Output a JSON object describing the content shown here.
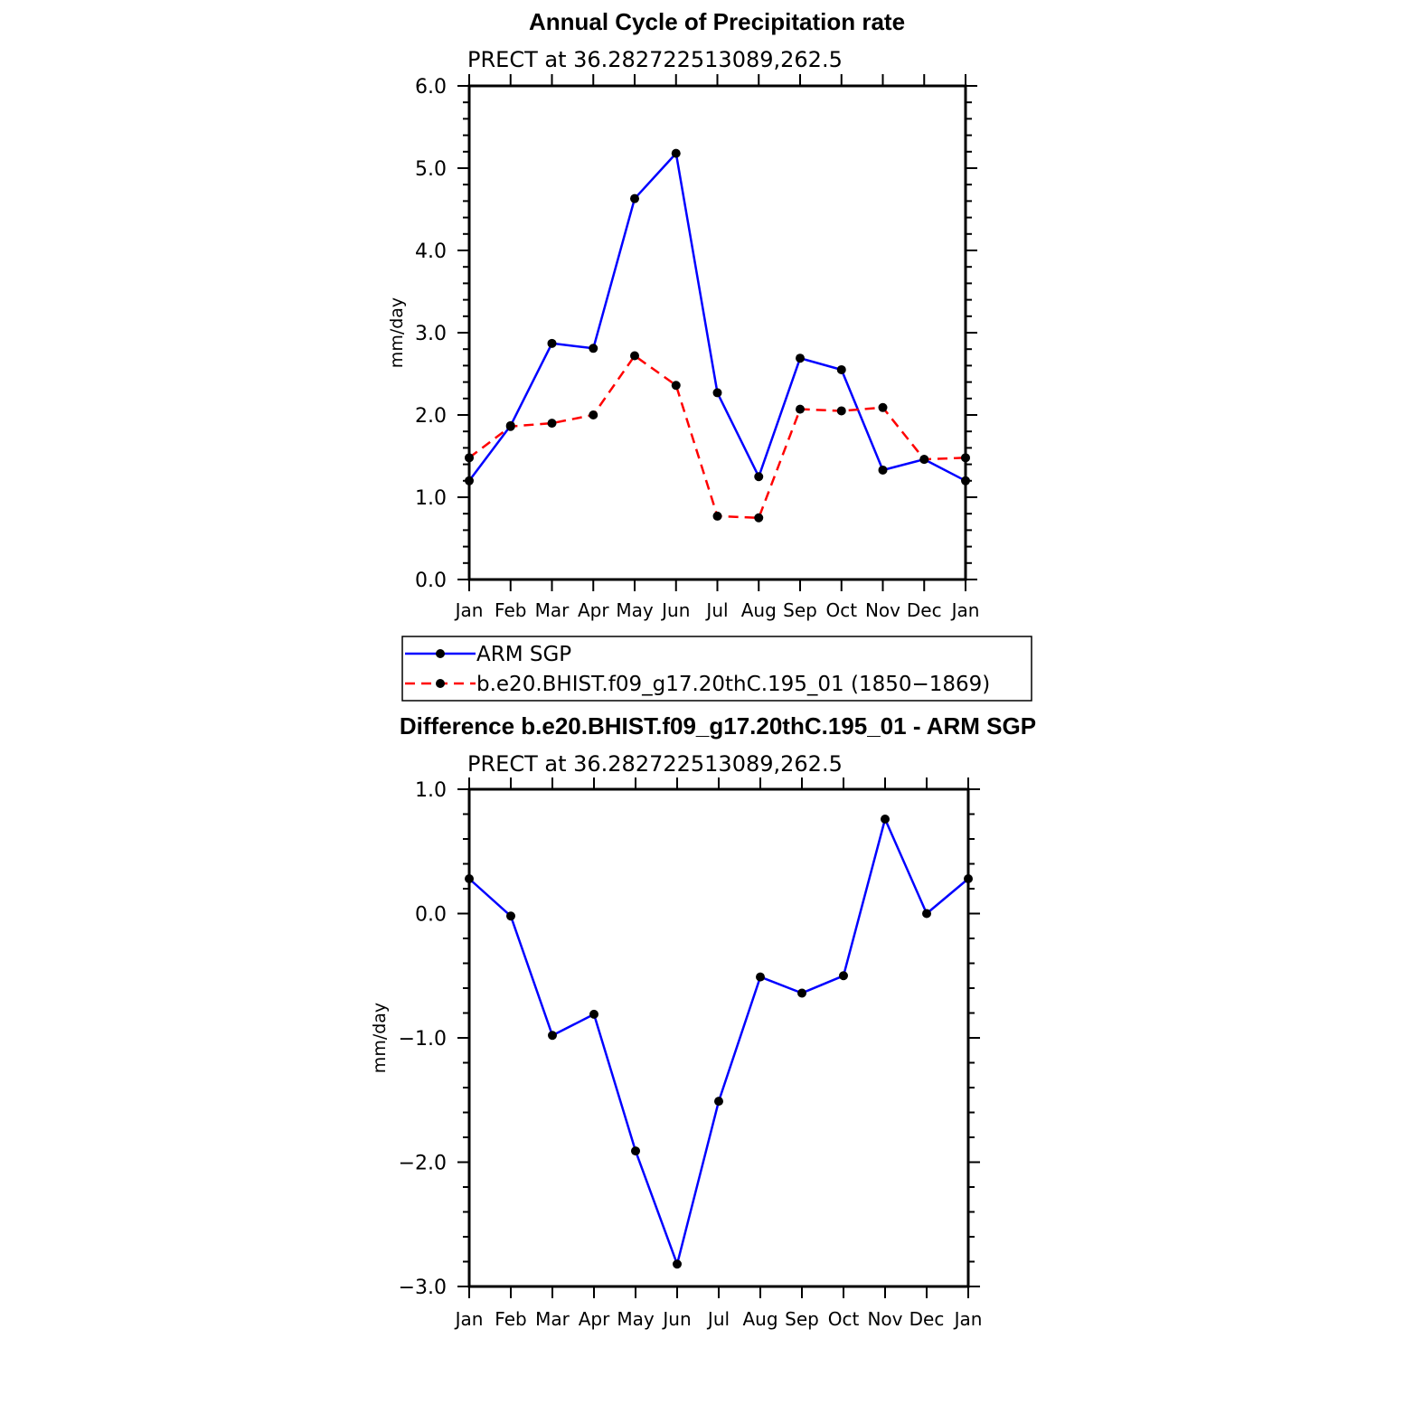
{
  "chart_data": [
    {
      "type": "line",
      "title": "Annual Cycle of Precipitation rate",
      "subtitle": "PRECT at 36.282722513089,262.5",
      "xlabel": "",
      "ylabel": "mm/day",
      "categories": [
        "Jan",
        "Feb",
        "Mar",
        "Apr",
        "May",
        "Jun",
        "Jul",
        "Aug",
        "Sep",
        "Oct",
        "Nov",
        "Dec",
        "Jan"
      ],
      "ylim": [
        0.0,
        6.0
      ],
      "yticks": [
        0.0,
        1.0,
        2.0,
        3.0,
        4.0,
        5.0,
        6.0
      ],
      "ytick_labels": [
        "0.0",
        "1.0",
        "2.0",
        "3.0",
        "4.0",
        "5.0",
        "6.0"
      ],
      "series": [
        {
          "name": "ARM SGP",
          "color": "#0000ff",
          "style": "solid",
          "values": [
            1.2,
            1.87,
            2.87,
            2.81,
            4.63,
            5.18,
            2.27,
            1.25,
            2.69,
            2.55,
            1.33,
            1.46,
            1.2
          ]
        },
        {
          "name": "b.e20.BHIST.f09_g17.20thC.195_01 (1850−1869)",
          "color": "#ff0000",
          "style": "dashed",
          "values": [
            1.48,
            1.86,
            1.9,
            2.0,
            2.72,
            2.36,
            0.77,
            0.75,
            2.07,
            2.05,
            2.09,
            1.46,
            1.48
          ]
        }
      ],
      "legend": "below"
    },
    {
      "type": "line",
      "title": "Difference b.e20.BHIST.f09_g17.20thC.195_01 - ARM SGP",
      "subtitle": "PRECT at 36.282722513089,262.5",
      "xlabel": "",
      "ylabel": "mm/day",
      "categories": [
        "Jan",
        "Feb",
        "Mar",
        "Apr",
        "May",
        "Jun",
        "Jul",
        "Aug",
        "Sep",
        "Oct",
        "Nov",
        "Dec",
        "Jan"
      ],
      "ylim": [
        -3.0,
        1.0
      ],
      "yticks": [
        -3.0,
        -2.0,
        -1.0,
        0.0,
        1.0
      ],
      "ytick_labels": [
        "−3.0",
        "−2.0",
        "−1.0",
        "0.0",
        "1.0"
      ],
      "series": [
        {
          "name": "Difference",
          "color": "#0000ff",
          "style": "solid",
          "values": [
            0.28,
            -0.02,
            -0.98,
            -0.81,
            -1.91,
            -2.82,
            -1.51,
            -0.51,
            -0.64,
            -0.5,
            0.76,
            0.0,
            0.28
          ]
        }
      ]
    }
  ]
}
